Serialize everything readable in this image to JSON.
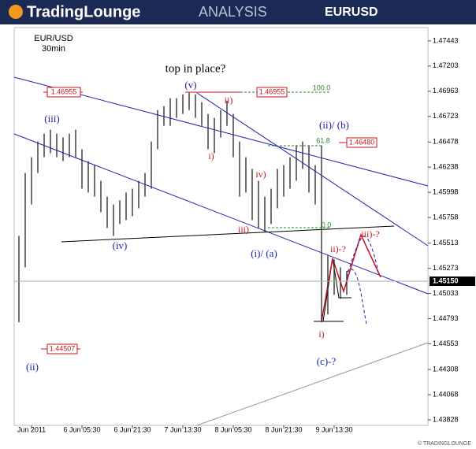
{
  "header": {
    "logo": "TradingLounge",
    "subtitle": "ANALYSIS",
    "symbol": "EURUSD"
  },
  "footer": "© TRADINGLOUNGE",
  "chart_data": {
    "type": "ohlc",
    "title": "EUR/USD",
    "subtitle": "30min",
    "categories": [
      null,
      null,
      "Jun 2011",
      null,
      null,
      null,
      null,
      null,
      null,
      null,
      "6 Jun 05:30",
      null,
      null,
      null,
      null,
      null,
      null,
      null,
      "6 Jun 21:30",
      null,
      null,
      null,
      null,
      null,
      null,
      null,
      "7 Jun 13:30",
      null,
      null,
      null,
      null,
      null,
      null,
      null,
      "8 Jun 05:30",
      null,
      null,
      null,
      null,
      null,
      null,
      null,
      "8 Jun 21:30",
      null,
      null,
      null,
      null,
      null,
      null,
      null,
      "9 Jun 13:30",
      null,
      null
    ],
    "series": [
      {
        "name": "high",
        "color": "#333333",
        "values": [
          1.45583,
          1.46183,
          1.46333,
          1.46483,
          1.46558,
          1.46596,
          1.46558,
          1.46521,
          1.46558,
          1.46596,
          1.46408,
          1.46296,
          1.46258,
          1.46108,
          1.45958,
          1.45883,
          1.45921,
          1.45996,
          1.46033,
          1.46108,
          1.46183,
          1.46483,
          1.46783,
          1.46821,
          1.46896,
          1.46896,
          1.46933,
          1.46948,
          1.46933,
          1.46858,
          1.46746,
          1.46708,
          1.46783,
          1.46873,
          1.46746,
          1.46483,
          1.46333,
          1.46221,
          1.46108,
          1.45958,
          1.46033,
          1.46221,
          1.46258,
          1.46333,
          1.46446,
          1.46483,
          1.46446,
          1.46258,
          1.46446,
          1.45396,
          1.45358,
          1.45283,
          1.45246
        ]
      },
      {
        "name": "low",
        "color": "#333333",
        "values": [
          1.44758,
          1.45283,
          1.45883,
          1.46183,
          1.46333,
          1.46371,
          1.46333,
          1.46296,
          1.46333,
          1.46333,
          1.46033,
          1.45996,
          1.45958,
          1.45808,
          1.45658,
          1.45583,
          1.45696,
          1.45733,
          1.45771,
          1.45846,
          1.45958,
          1.46033,
          1.46408,
          1.46633,
          1.46633,
          1.46708,
          1.46746,
          1.46783,
          1.46708,
          1.46633,
          1.46408,
          1.46371,
          1.46521,
          1.46633,
          1.46333,
          1.45958,
          1.45996,
          1.45733,
          1.45658,
          1.45621,
          1.45696,
          1.45846,
          1.45958,
          1.46033,
          1.46108,
          1.46221,
          1.45996,
          1.45883,
          1.44758,
          1.44833,
          1.45021,
          1.44983,
          1.45021
        ]
      }
    ],
    "ylim": [
      1.43775,
      1.4757
    ],
    "yticks": [
      1.47443,
      1.47203,
      1.46963,
      1.46723,
      1.46478,
      1.46238,
      1.45998,
      1.45758,
      1.45513,
      1.45273,
      1.45033,
      1.44793,
      1.44553,
      1.44308,
      1.44068,
      1.43828
    ],
    "last_price": {
      "value": 1.4515,
      "label": "1.45150"
    },
    "annotations": [
      "top in place?",
      "(v)",
      "(iii)",
      "(iv)",
      "(ii)",
      "i)",
      "ii)",
      "iii)",
      "iv)",
      "(i)/ (a)",
      "(ii)/ (b)",
      "i)",
      "ii)-?",
      "iii)-?",
      "(c)-?",
      "100.0",
      "61.8",
      "0.0",
      "1.46955",
      "1.46955",
      "1.46480",
      "1.44507"
    ]
  }
}
